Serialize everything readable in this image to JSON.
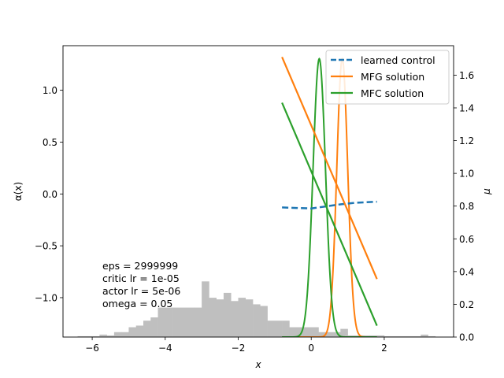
{
  "chart_data": {
    "type": "line",
    "xlabel": "x",
    "ylabel_left": "α(x)",
    "ylabel_right": "μ",
    "xlim": [
      -6.8,
      3.9
    ],
    "ylim_left": [
      -1.38,
      1.43
    ],
    "ylim_right": [
      0.0,
      1.78
    ],
    "xticks": [
      -6,
      -4,
      -2,
      0,
      2
    ],
    "xtick_labels": [
      "−6",
      "−4",
      "−2",
      "0",
      "2"
    ],
    "yticks_left": [
      1.0,
      0.5,
      0.0,
      -0.5,
      -1.0
    ],
    "ytick_labels_left": [
      "1.0",
      "0.5",
      "0.0",
      "−0.5",
      "−1.0"
    ],
    "yticks_right": [
      0.0,
      0.2,
      0.4,
      0.6,
      0.8,
      1.0,
      1.2,
      1.4,
      1.6
    ],
    "ytick_labels_right": [
      "0.0",
      "0.2",
      "0.4",
      "0.6",
      "0.8",
      "1.0",
      "1.2",
      "1.4",
      "1.6"
    ],
    "legend_position": "top-right",
    "series": [
      {
        "name": "learned control",
        "axis": "left",
        "style": "dashed",
        "color": "#1f77b4",
        "x": [
          -0.8,
          -0.4,
          0.0,
          0.4,
          0.8,
          1.2,
          1.8
        ],
        "y": [
          -0.13,
          -0.135,
          -0.14,
          -0.12,
          -0.1,
          -0.085,
          -0.075
        ]
      },
      {
        "name": "MFG solution",
        "axis": "left",
        "style": "solid",
        "color": "#ff7f0e",
        "x": [
          -0.8,
          1.8
        ],
        "y": [
          1.32,
          -0.82
        ]
      },
      {
        "name": "MFC solution",
        "axis": "left",
        "style": "solid",
        "color": "#2ca02c",
        "x": [
          -0.8,
          1.8
        ],
        "y": [
          0.88,
          -1.27
        ]
      }
    ],
    "density_curves": [
      {
        "series": "MFG solution",
        "axis": "right",
        "color": "#ff7f0e",
        "mean": 0.85,
        "std": 0.15,
        "peak": 1.7,
        "xrange": [
          -0.8,
          1.8
        ]
      },
      {
        "series": "MFC solution",
        "axis": "right",
        "color": "#2ca02c",
        "mean": 0.22,
        "std": 0.17,
        "peak": 1.7,
        "xrange": [
          -0.8,
          1.8
        ]
      }
    ],
    "histogram": {
      "axis": "right",
      "color": "#bfbfbf",
      "bin_edges": [
        -6.4,
        -6.2,
        -6.0,
        -5.8,
        -5.6,
        -5.4,
        -5.2,
        -5.0,
        -4.8,
        -4.6,
        -4.4,
        -4.2,
        -4.0,
        -3.8,
        -3.6,
        -3.4,
        -3.2,
        -3.0,
        -2.8,
        -2.6,
        -2.4,
        -2.2,
        -2.0,
        -1.8,
        -1.6,
        -1.4,
        -1.2,
        -1.0,
        -0.8,
        -0.6,
        -0.4,
        -0.2,
        0.0,
        0.2,
        0.4,
        0.6,
        0.8,
        1.0,
        1.2,
        1.4,
        1.6,
        1.8,
        2.0,
        2.2,
        2.4,
        2.6,
        2.8,
        3.0,
        3.2,
        3.4
      ],
      "heights": [
        0.005,
        0.005,
        0.005,
        0.015,
        0.01,
        0.03,
        0.03,
        0.06,
        0.07,
        0.1,
        0.12,
        0.18,
        0.18,
        0.18,
        0.18,
        0.18,
        0.18,
        0.34,
        0.24,
        0.23,
        0.27,
        0.22,
        0.24,
        0.23,
        0.2,
        0.19,
        0.1,
        0.1,
        0.1,
        0.06,
        0.06,
        0.06,
        0.06,
        0.03,
        0.03,
        0.03,
        0.05,
        0.01,
        0.01,
        0.01,
        0.01,
        0.01,
        0.005,
        0.005,
        0.005,
        0.005,
        0.005,
        0.015,
        0.005
      ]
    },
    "annotation_lines": [
      "eps = 2999999",
      "critic lr = 1e-05",
      "actor lr = 5e-06",
      "omega = 0.05"
    ]
  }
}
